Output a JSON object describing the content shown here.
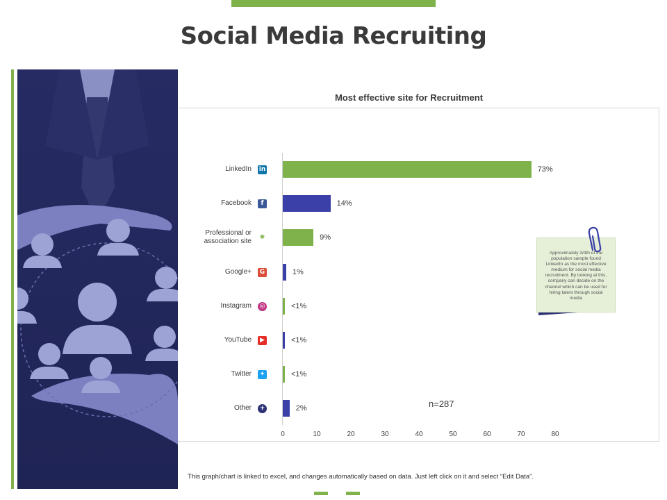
{
  "page": {
    "title": "Social Media Recruiting"
  },
  "chart_data": {
    "type": "bar",
    "orientation": "horizontal",
    "title": "Most effective site for Recruitment",
    "categories": [
      "LinkedIn",
      "Facebook",
      "Professional or association site",
      "Google+",
      "Instagram",
      "YouTube",
      "Twitter",
      "Other"
    ],
    "category_lines": [
      [
        "LinkedIn"
      ],
      [
        "Facebook"
      ],
      [
        "Professional or",
        "association site"
      ],
      [
        "Google+"
      ],
      [
        "Instagram"
      ],
      [
        "YouTube"
      ],
      [
        "Twitter"
      ],
      [
        "Other"
      ]
    ],
    "values": [
      73,
      14,
      9,
      1,
      0.5,
      0.5,
      0.5,
      2
    ],
    "value_labels": [
      "73%",
      "14%",
      "9%",
      "1%",
      "<1%",
      "<1%",
      "<1%",
      "2%"
    ],
    "bar_colors": [
      "#7fb24a",
      "#3b40a8",
      "#7fb24a",
      "#3b40a8",
      "#7fb24a",
      "#3b40a8",
      "#7fb24a",
      "#3b40a8"
    ],
    "icons": [
      "linkedin-icon",
      "facebook-icon",
      "association-icon",
      "google-plus-icon",
      "instagram-icon",
      "youtube-icon",
      "twitter-icon",
      "plus-icon"
    ],
    "icon_colors": [
      "#0e76a8",
      "#3b5998",
      "#7fb24a",
      "#dd4b39",
      "#c13584",
      "#e52d27",
      "#1da1f2",
      "#2c3274"
    ],
    "xlim": [
      0,
      80
    ],
    "xticks": [
      0,
      10,
      20,
      30,
      40,
      50,
      60,
      70,
      80
    ],
    "sample_size": "n=287",
    "grid": false,
    "legend": "none"
  },
  "note": {
    "text": "Approximately 3/4th of the population sample found LinkedIn as the most effective medium for social media recruitment. By looking at this, company can decide on the channel which can be used for hiring talent through social media"
  },
  "footer": {
    "text": "This graph/chart is linked to excel, and changes automatically based on data. Just left click on it and select “Edit Data”."
  },
  "colors": {
    "accent": "#7fb24a",
    "navy": "#2c3274",
    "bar_blue": "#3b40a8"
  }
}
